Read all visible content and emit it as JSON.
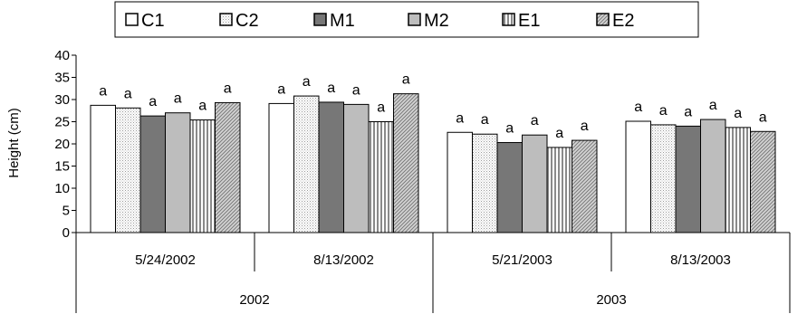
{
  "chart_data": {
    "type": "bar",
    "ylabel": "Height (cm)",
    "ylim": [
      0,
      40
    ],
    "yticks": [
      0,
      5,
      10,
      15,
      20,
      25,
      30,
      35,
      40
    ],
    "grid": false,
    "legend_position": "top",
    "categories": [
      "5/24/2002",
      "8/13/2002",
      "5/21/2003",
      "8/13/2003"
    ],
    "groups": [
      {
        "label": "2002",
        "categories": [
          "5/24/2002",
          "8/13/2002"
        ]
      },
      {
        "label": "2003",
        "categories": [
          "5/21/2003",
          "8/13/2003"
        ]
      }
    ],
    "series": [
      {
        "name": "C1",
        "values": [
          28.7,
          29.1,
          22.6,
          25.1
        ],
        "labels": [
          "a",
          "a",
          "a",
          "a"
        ],
        "fill": "#ffffff",
        "pattern": "none"
      },
      {
        "name": "C2",
        "values": [
          28.1,
          30.8,
          22.2,
          24.3
        ],
        "labels": [
          "a",
          "a",
          "a",
          "a"
        ],
        "fill": "#ffffff",
        "pattern": "dots"
      },
      {
        "name": "M1",
        "values": [
          26.3,
          29.4,
          20.3,
          24.0
        ],
        "labels": [
          "a",
          "a",
          "a",
          "a"
        ],
        "fill": "#777777",
        "pattern": "none"
      },
      {
        "name": "M2",
        "values": [
          27.0,
          28.9,
          22.0,
          25.5
        ],
        "labels": [
          "a",
          "a",
          "a",
          "a"
        ],
        "fill": "#bdbdbd",
        "pattern": "none"
      },
      {
        "name": "E1",
        "values": [
          25.4,
          25.0,
          19.2,
          23.7
        ],
        "labels": [
          "a",
          "a",
          "a",
          "a"
        ],
        "fill": "#ffffff",
        "pattern": "vertical-lines"
      },
      {
        "name": "E2",
        "values": [
          29.3,
          31.3,
          20.8,
          22.8
        ],
        "labels": [
          "a",
          "a",
          "a",
          "a"
        ],
        "fill": "#c8c8c8",
        "pattern": "cross-hatch"
      }
    ]
  }
}
